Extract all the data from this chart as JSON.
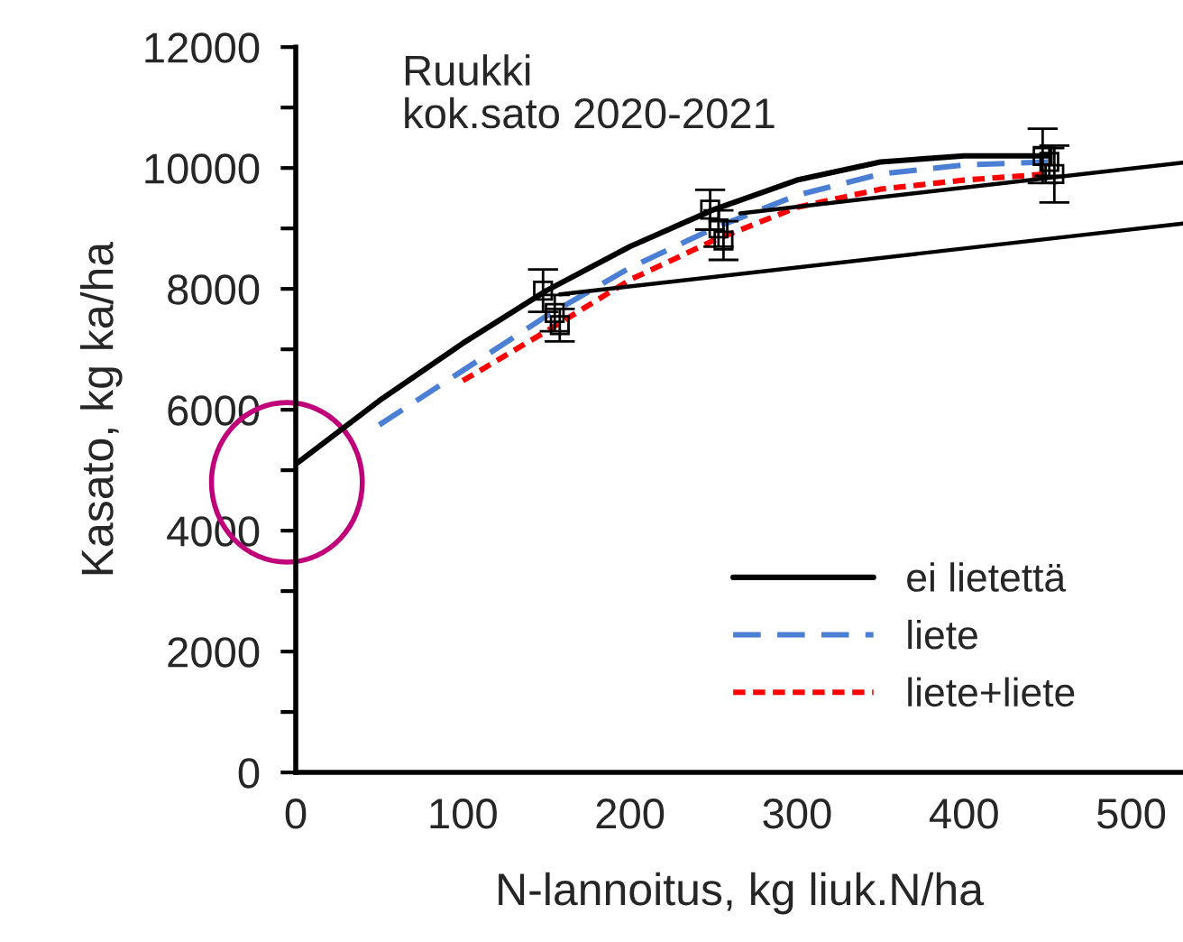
{
  "chart_data": {
    "type": "line",
    "title": "Ruukki\nkok.sato 2020-2021",
    "xlabel": "N-lannoitus, kg liuk.N/ha",
    "ylabel": "Kasato, kg ka/ha",
    "xlim": [
      0,
      531
    ],
    "xticks": [
      0,
      100,
      200,
      300,
      400,
      500
    ],
    "ylim": [
      0,
      12000
    ],
    "yticks": [
      0,
      {
        "value": 1000,
        "label": null
      },
      2000,
      {
        "value": 3000,
        "label": null
      },
      4000,
      {
        "value": 5000,
        "label": null
      },
      6000,
      {
        "value": 7000,
        "label": null
      },
      8000,
      {
        "value": 9000,
        "label": null
      },
      10000,
      {
        "value": 11000,
        "label": null
      },
      12000
    ],
    "grid": false,
    "legend": "bottom right",
    "series": [
      {
        "name": "ei lietettä",
        "color": "#000000",
        "line_style": "solid",
        "marker": "none",
        "x": [
          0,
          50,
          100,
          150,
          200,
          250,
          300,
          350,
          400,
          450
        ],
        "values": [
          5100,
          6150,
          7100,
          7970,
          8700,
          9310,
          9800,
          10100,
          10200,
          10200
        ]
      },
      {
        "name": "liete",
        "color": "#4a7fd4",
        "line_style": "dashed",
        "marker": "none",
        "x": [
          50,
          100,
          150,
          200,
          250,
          300,
          350,
          400,
          450
        ],
        "values": [
          5750,
          6650,
          7550,
          8350,
          9000,
          9550,
          9900,
          10050,
          10100
        ]
      },
      {
        "name": "liete+liete",
        "color": "#ff0000",
        "line_style": "dotted",
        "marker": "none",
        "x": [
          100,
          150,
          200,
          250,
          300,
          350,
          400,
          450
        ],
        "values": [
          6480,
          7300,
          8150,
          8800,
          9350,
          9650,
          9800,
          9900
        ]
      },
      {
        "color": "#000000",
        "line_style": "solid",
        "marker": "none",
        "x": [
          158,
          531
        ],
        "values": [
          7910,
          9080
        ]
      },
      {
        "color": "#000000",
        "line_style": "solid",
        "marker": "none",
        "x": [
          266,
          531
        ],
        "values": [
          9250,
          10090
        ]
      },
      {
        "type": "scatter",
        "color": "#000000",
        "marker": "square",
        "x": [
          148,
          155,
          158,
          248,
          253,
          256,
          447,
          451,
          454
        ],
        "values": [
          7970,
          7600,
          7400,
          9310,
          9000,
          8800,
          10200,
          10100,
          9900
        ],
        "errors": [
          350,
          300,
          270,
          330,
          300,
          320,
          450,
          230,
          470
        ]
      }
    ]
  }
}
